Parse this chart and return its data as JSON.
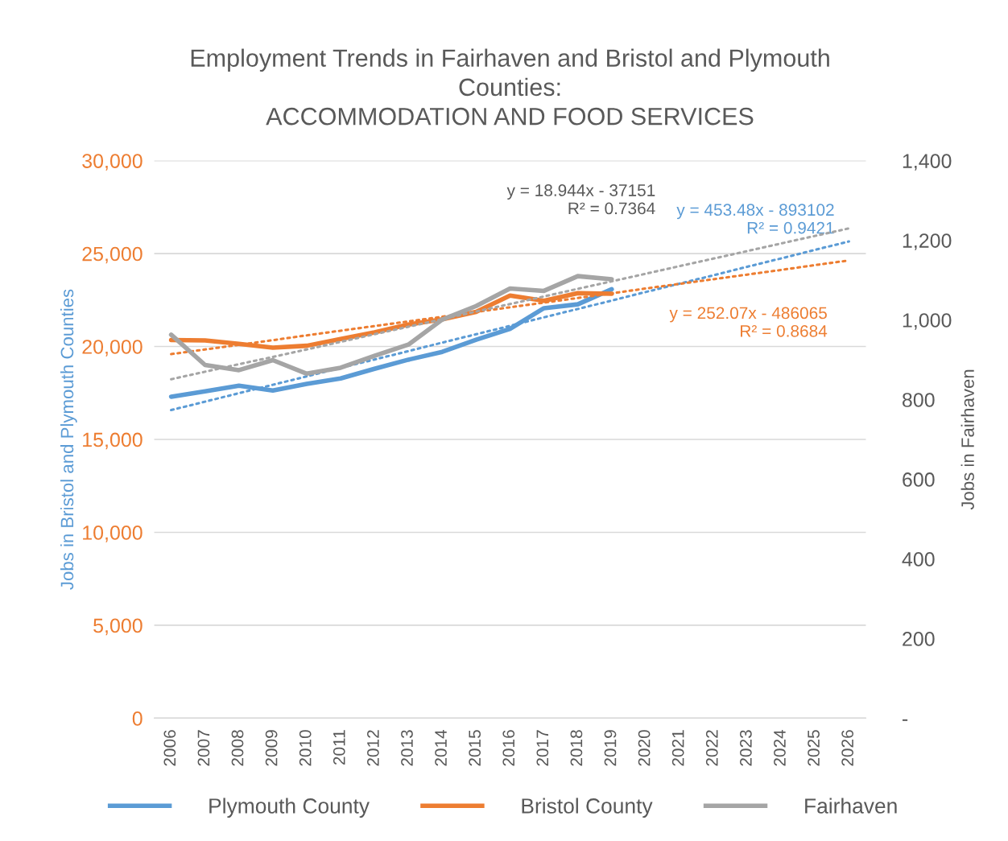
{
  "chart_data": {
    "type": "line",
    "title": "Employment Trends in Fairhaven and Bristol and Plymouth\nCounties:\nACCOMMODATION AND FOOD SERVICES",
    "ylabel": "Jobs in Bristol and Plymouth Counties",
    "y2label": "Jobs in Fairhaven",
    "categories": [
      "2006",
      "2007",
      "2008",
      "2009",
      "2010",
      "2011",
      "2012",
      "2013",
      "2014",
      "2015",
      "2016",
      "2017",
      "2018",
      "2019",
      "2020",
      "2021",
      "2022",
      "2023",
      "2024",
      "2025",
      "2026"
    ],
    "series": [
      {
        "name": "Plymouth County",
        "color": "#5b9bd5",
        "values": [
          17300,
          17590,
          17890,
          17630,
          17990,
          18280,
          18800,
          19290,
          19710,
          20360,
          20950,
          22060,
          22270,
          23080,
          null,
          null,
          null,
          null,
          null,
          null,
          null
        ]
      },
      {
        "name": "Bristol County",
        "color": "#ed7d31",
        "values": [
          20350,
          20330,
          20140,
          19940,
          20040,
          20400,
          20760,
          21180,
          21460,
          21860,
          22740,
          22460,
          22870,
          22840,
          null,
          null,
          null,
          null,
          null,
          null,
          null
        ]
      },
      {
        "name": "Fairhaven",
        "color": "#a5a5a5",
        "axis": "y2",
        "values": [
          963,
          887,
          874,
          899,
          865,
          880,
          910,
          938,
          1001,
          1035,
          1079,
          1073,
          1110,
          1102,
          null,
          null,
          null,
          null,
          null,
          null,
          null
        ]
      },
      {
        "type": "line",
        "line_style": "dotted",
        "color": "#a5a5a5",
        "axis": "y2",
        "values": [
          851,
          870,
          889,
          907,
          926,
          945,
          964,
          983,
          1002,
          1021,
          1040,
          1059,
          1078,
          1097,
          1116,
          1135,
          1154,
          1173,
          1192,
          1211,
          1230
        ]
      },
      {
        "type": "line",
        "line_style": "dotted",
        "color": "#5b9bd5",
        "values": [
          16580,
          17030,
          17490,
          17940,
          18390,
          18850,
          19300,
          19750,
          20210,
          20660,
          21110,
          21570,
          22020,
          22470,
          22930,
          23380,
          23830,
          24290,
          24740,
          25200,
          25650
        ]
      },
      {
        "type": "line",
        "line_style": "dotted",
        "color": "#ed7d31",
        "values": [
          19590,
          19840,
          20090,
          20340,
          20600,
          20850,
          21100,
          21350,
          21600,
          21860,
          22110,
          22360,
          22610,
          22860,
          23120,
          23370,
          23620,
          23870,
          24120,
          24380,
          24630
        ]
      }
    ],
    "annotations": [
      "y = 18.944x - 37151\nR² = 0.7364",
      "y = 453.48x - 893102\nR² = 0.9421",
      "y = 252.07x - 486065\nR² = 0.8684"
    ],
    "ylim": [
      0,
      30000
    ],
    "yticks": [
      {
        "value": 0,
        "label": "0"
      },
      {
        "value": 5000,
        "label": "5,000"
      },
      {
        "value": 10000,
        "label": "10,000"
      },
      {
        "value": 15000,
        "label": "15,000"
      },
      {
        "value": 20000,
        "label": "20,000"
      },
      {
        "value": 25000,
        "label": "25,000"
      },
      {
        "value": 30000,
        "label": "30,000"
      }
    ],
    "y2lim": [
      0,
      1400
    ],
    "y2ticks": [
      {
        "value": 0,
        "label": "-"
      },
      {
        "value": 200,
        "label": "200"
      },
      {
        "value": 400,
        "label": "400"
      },
      {
        "value": 600,
        "label": "600"
      },
      {
        "value": 800,
        "label": "800"
      },
      {
        "value": 1000,
        "label": "1,000"
      },
      {
        "value": 1200,
        "label": "1,200"
      },
      {
        "value": 1400,
        "label": "1,400"
      }
    ],
    "grid": "y",
    "legend": "bottom",
    "marker": "none",
    "line_style": "solid"
  }
}
